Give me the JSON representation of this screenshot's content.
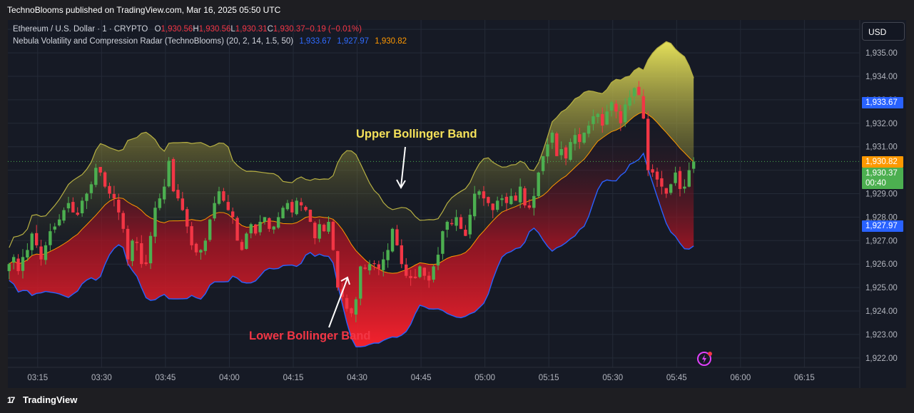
{
  "header": {
    "published": "TechnoBlooms published on TradingView.com, Mar 16, 2025 05:50 UTC"
  },
  "legend": {
    "symbol": "Ethereum / U.S. Dollar · 1 · CRYPTO",
    "o_key": "O",
    "o_val": "1,930.56",
    "h_key": "H",
    "h_val": "1,930.56",
    "l_key": "L",
    "l_val": "1,930.31",
    "c_key": "C",
    "c_val": "1,930.37",
    "change": "−0.19 (−0.01%)",
    "indicator": "Nebula Volatility and Compression Radar (TechnoBlooms) (20, 2, 14, 1.5, 50)",
    "upper_val": "1,933.67",
    "lower_val": "1,927.97",
    "basis_val": "1,930.82"
  },
  "currency_button": "USD",
  "price_labels": {
    "upper": "1,933.67",
    "basis": "1,930.82",
    "last": "1,930.37",
    "countdown": "00:40",
    "lower": "1,927.97"
  },
  "annotations": {
    "upper": "Upper Bollinger Band",
    "lower": "Lower Bollinger Band"
  },
  "footer": {
    "brand": "TradingView"
  },
  "colors": {
    "background": "#161a25",
    "up": "#4caf50",
    "down": "#f23645",
    "upper_band": "#e4e05a",
    "lower_band": "#2962ff",
    "basis": "#ff9800",
    "lower_fill": "#f5222d",
    "upper_label": "#2962ff",
    "basis_label": "#ff9800",
    "last_label": "#4caf50",
    "lower_label": "#2962ff"
  },
  "chart_data": {
    "type": "candlestick",
    "x_ticks": [
      "03:15",
      "03:30",
      "03:45",
      "04:00",
      "04:15",
      "04:30",
      "04:45",
      "05:00",
      "05:15",
      "05:30",
      "05:45",
      "06:00",
      "06:15"
    ],
    "y_ticks": [
      "1,922.00",
      "1,923.00",
      "1,924.00",
      "1,925.00",
      "1,926.00",
      "1,927.00",
      "1,928.00",
      "1,929.00",
      "1,930.00",
      "1,931.00",
      "1,932.00",
      "1,933.00",
      "1,934.00",
      "1,935.00",
      "1,936.00"
    ],
    "ylim": [
      1921.6,
      1936.4
    ],
    "x_range_minutes": [
      "03:08",
      "06:28"
    ],
    "series": [
      {
        "name": "Ethereum / U.S. Dollar",
        "close": [
          1926.0,
          1926.3,
          1925.7,
          1926.3,
          1926.6,
          1927.3,
          1926.8,
          1926.2,
          1926.8,
          1927.4,
          1927.6,
          1927.9,
          1928.3,
          1928.6,
          1928.2,
          1928.1,
          1928.7,
          1929.0,
          1929.4,
          1930.1,
          1929.9,
          1929.3,
          1929.0,
          1928.8,
          1928.2,
          1927.5,
          1926.2,
          1927.0,
          1926.9,
          1926.0,
          1926.0,
          1927.2,
          1928.4,
          1928.8,
          1929.3,
          1930.4,
          1929.1,
          1928.8,
          1928.3,
          1927.6,
          1926.8,
          1926.5,
          1926.6,
          1927.0,
          1927.9,
          1928.6,
          1929.1,
          1928.7,
          1928.3,
          1928.0,
          1927.0,
          1926.6,
          1927.3,
          1927.7,
          1927.3,
          1927.8,
          1928.0,
          1927.5,
          1927.6,
          1928.0,
          1928.4,
          1928.6,
          1928.2,
          1928.7,
          1928.5,
          1928.3,
          1927.8,
          1927.1,
          1927.7,
          1927.4,
          1927.8,
          1926.6,
          1925.0,
          1924.6,
          1924.1,
          1923.9,
          1924.5,
          1925.9,
          1925.8,
          1926.0,
          1926.0,
          1925.8,
          1926.2,
          1926.6,
          1927.5,
          1926.8,
          1926.0,
          1925.5,
          1925.4,
          1925.4,
          1925.9,
          1925.5,
          1925.3,
          1925.9,
          1926.4,
          1927.4,
          1927.8,
          1927.7,
          1928.0,
          1927.5,
          1927.2,
          1928.1,
          1929.0,
          1929.1,
          1928.8,
          1928.6,
          1928.3,
          1928.7,
          1928.8,
          1928.6,
          1928.9,
          1928.7,
          1929.3,
          1928.5,
          1928.4,
          1928.9,
          1929.9,
          1930.6,
          1931.1,
          1931.6,
          1930.6,
          1930.9,
          1930.5,
          1931.2,
          1931.5,
          1931.2,
          1931.6,
          1931.9,
          1932.3,
          1932.4,
          1931.9,
          1932.5,
          1932.9,
          1932.5,
          1932.0,
          1932.8,
          1933.1,
          1933.5,
          1933.2,
          1932.2,
          1930.0,
          1929.9,
          1929.6,
          1929.3,
          1929.0,
          1929.4,
          1929.9,
          1929.2,
          1929.3,
          1930.0,
          1930.37
        ]
      }
    ],
    "bands": {
      "upper": "Upper Bollinger Band",
      "lower": "Lower Bollinger Band",
      "basis": "basis"
    },
    "last_values": {
      "upper": 1933.67,
      "basis": 1930.82,
      "lower": 1927.97,
      "close": 1930.37
    }
  }
}
